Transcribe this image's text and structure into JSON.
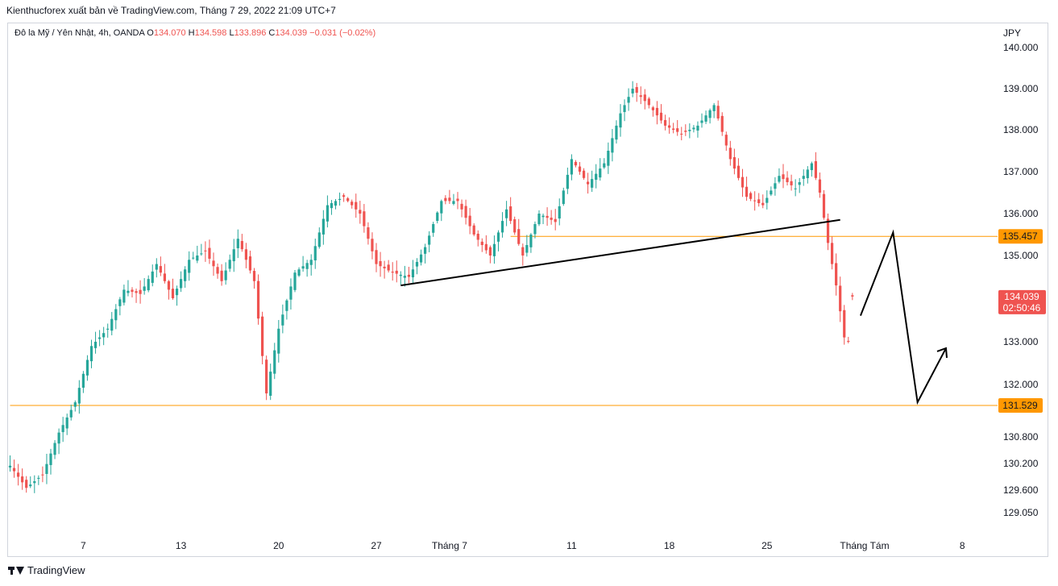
{
  "header": {
    "publisher": "Kienthucforex xuất bản về TradingView.com, Tháng 7 29, 2022 21:09 UTC+7"
  },
  "legend": {
    "symbol": "Đô la Mỹ / Yên Nhật, 4h, OANDA",
    "o_label": "O",
    "o_value": "134.070",
    "h_label": "H",
    "h_value": "134.598",
    "l_label": "L",
    "l_value": "133.896",
    "c_label": "C",
    "c_value": "134.039",
    "change": "−0.031 (−0.02%)"
  },
  "footer": {
    "brand": "TradingView"
  },
  "colors": {
    "up": "#26a69a",
    "down": "#ef5350",
    "level": "#ff9800",
    "trendline": "#000000",
    "last_price_bg": "#ef5350"
  },
  "chart_data": {
    "type": "candlestick",
    "currency": "JPY",
    "y_ticks": [
      129.05,
      129.6,
      130.2,
      130.8,
      131.529,
      132,
      133,
      134,
      135,
      136,
      137,
      138,
      139,
      140
    ],
    "y_tick_labels": [
      "129.050",
      "129.600",
      "130.200",
      "130.800",
      "131.529",
      "132.000",
      "133.000",
      "134.000",
      "135.000",
      "136.000",
      "137.000",
      "138.000",
      "139.000",
      "140.000"
    ],
    "x_ticks": [
      {
        "label": "7",
        "i": 18
      },
      {
        "label": "13",
        "i": 42
      },
      {
        "label": "20",
        "i": 66
      },
      {
        "label": "27",
        "i": 90
      },
      {
        "label": "Tháng 7",
        "i": 108
      },
      {
        "label": "11",
        "i": 138
      },
      {
        "label": "18",
        "i": 162
      },
      {
        "label": "25",
        "i": 186
      },
      {
        "label": "Tháng Tám",
        "i": 210
      },
      {
        "label": "8",
        "i": 234
      }
    ],
    "levels": [
      {
        "label": "135.457",
        "value": 135.457,
        "from_i": 123
      },
      {
        "label": "131.529",
        "value": 131.529,
        "from_i": 0
      }
    ],
    "last_price": {
      "value": 134.039,
      "label": "134.039",
      "countdown": "02:50:46"
    },
    "trendlines": [
      {
        "from": [
          96,
          134.3
        ],
        "to": [
          204,
          135.85
        ]
      }
    ],
    "projection": [
      [
        209,
        133.6
      ],
      [
        217,
        135.55
      ],
      [
        223,
        131.6
      ],
      [
        230,
        132.85
      ]
    ],
    "anchors": [
      [
        0,
        130.15
      ],
      [
        4,
        129.65
      ],
      [
        8,
        129.95
      ],
      [
        12,
        130.9
      ],
      [
        16,
        131.6
      ],
      [
        20,
        132.9
      ],
      [
        24,
        133.3
      ],
      [
        28,
        134.2
      ],
      [
        32,
        134.1
      ],
      [
        36,
        134.8
      ],
      [
        40,
        134.0
      ],
      [
        44,
        134.9
      ],
      [
        48,
        135.1
      ],
      [
        52,
        134.4
      ],
      [
        56,
        135.4
      ],
      [
        60,
        134.4
      ],
      [
        63,
        131.8
      ],
      [
        66,
        133.3
      ],
      [
        70,
        134.6
      ],
      [
        74,
        134.9
      ],
      [
        78,
        136.2
      ],
      [
        82,
        136.4
      ],
      [
        86,
        136.0
      ],
      [
        90,
        134.8
      ],
      [
        94,
        134.6
      ],
      [
        98,
        134.5
      ],
      [
        102,
        135.2
      ],
      [
        106,
        136.3
      ],
      [
        110,
        136.3
      ],
      [
        114,
        135.5
      ],
      [
        118,
        135.0
      ],
      [
        122,
        136.1
      ],
      [
        126,
        135.0
      ],
      [
        130,
        136.0
      ],
      [
        134,
        135.8
      ],
      [
        138,
        137.3
      ],
      [
        142,
        136.7
      ],
      [
        146,
        137.2
      ],
      [
        150,
        138.4
      ],
      [
        153,
        139.0
      ],
      [
        157,
        138.6
      ],
      [
        161,
        138.1
      ],
      [
        165,
        137.9
      ],
      [
        169,
        138.1
      ],
      [
        173,
        138.6
      ],
      [
        177,
        137.3
      ],
      [
        181,
        136.4
      ],
      [
        185,
        136.2
      ],
      [
        189,
        136.9
      ],
      [
        193,
        136.6
      ],
      [
        197,
        137.2
      ],
      [
        199,
        136.5
      ],
      [
        201,
        135.3
      ],
      [
        203,
        134.3
      ],
      [
        205,
        133.1
      ],
      [
        206,
        133.0
      ],
      [
        207,
        134.04
      ]
    ]
  }
}
